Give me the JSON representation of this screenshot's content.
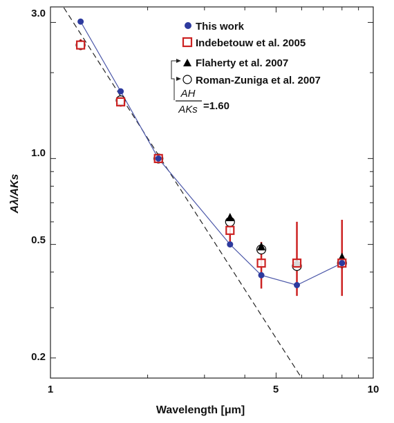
{
  "chart_data": {
    "type": "scatter",
    "xlabel": "Wavelength [μm]",
    "ylabel": "Aλ/AKs",
    "xscale": "log",
    "yscale": "log",
    "xlim": [
      1,
      10
    ],
    "ylim": [
      0.17,
      3.4
    ],
    "x_ticks": [
      "1",
      "5",
      "10"
    ],
    "y_ticks": [
      "0.2",
      "0.5",
      "1.0",
      "3.0"
    ],
    "series": [
      {
        "name": "This work",
        "marker": "filled-circle",
        "color": "#2d3a9e",
        "connected": true,
        "x": [
          1.24,
          1.65,
          2.16,
          3.6,
          4.5,
          5.8,
          8.0
        ],
        "y": [
          3.02,
          1.72,
          1.0,
          0.5,
          0.39,
          0.36,
          0.43
        ]
      },
      {
        "name": "Indebetouw et al. 2005",
        "marker": "open-square",
        "color": "#cc2222",
        "x": [
          1.24,
          1.65,
          2.16,
          3.6,
          4.5,
          5.8,
          8.0
        ],
        "y": [
          2.5,
          1.58,
          1.0,
          0.56,
          0.43,
          0.43,
          0.43
        ],
        "yerr_low": [
          2.4,
          1.52,
          0.98,
          0.49,
          0.35,
          0.33,
          0.33
        ],
        "yerr_high": [
          2.62,
          1.64,
          1.02,
          0.63,
          0.51,
          0.6,
          0.61
        ]
      },
      {
        "name": "Flaherty et al. 2007",
        "marker": "filled-triangle",
        "color": "#000000",
        "x": [
          3.6,
          4.5,
          5.8,
          8.0
        ],
        "y": [
          0.62,
          0.49,
          0.43,
          0.45
        ]
      },
      {
        "name": "Roman-Zuniga et al. 2007",
        "marker": "open-circle",
        "color": "#000000",
        "x": [
          1.24,
          1.65,
          2.16,
          3.6,
          4.5,
          5.8,
          8.0
        ],
        "y": [
          2.5,
          1.6,
          1.0,
          0.6,
          0.48,
          0.42,
          0.43
        ]
      }
    ],
    "power_law_curve": {
      "style": "dashed",
      "x": [
        1.1,
        6.0
      ],
      "y": [
        3.38,
        0.17
      ]
    },
    "annotation": {
      "numerator": "AH",
      "denominator": "AKs",
      "value_text": "=1.60"
    }
  },
  "colors": {
    "this_work": "#2d3a9e",
    "indebetouw": "#cc2222",
    "black": "#000000"
  }
}
